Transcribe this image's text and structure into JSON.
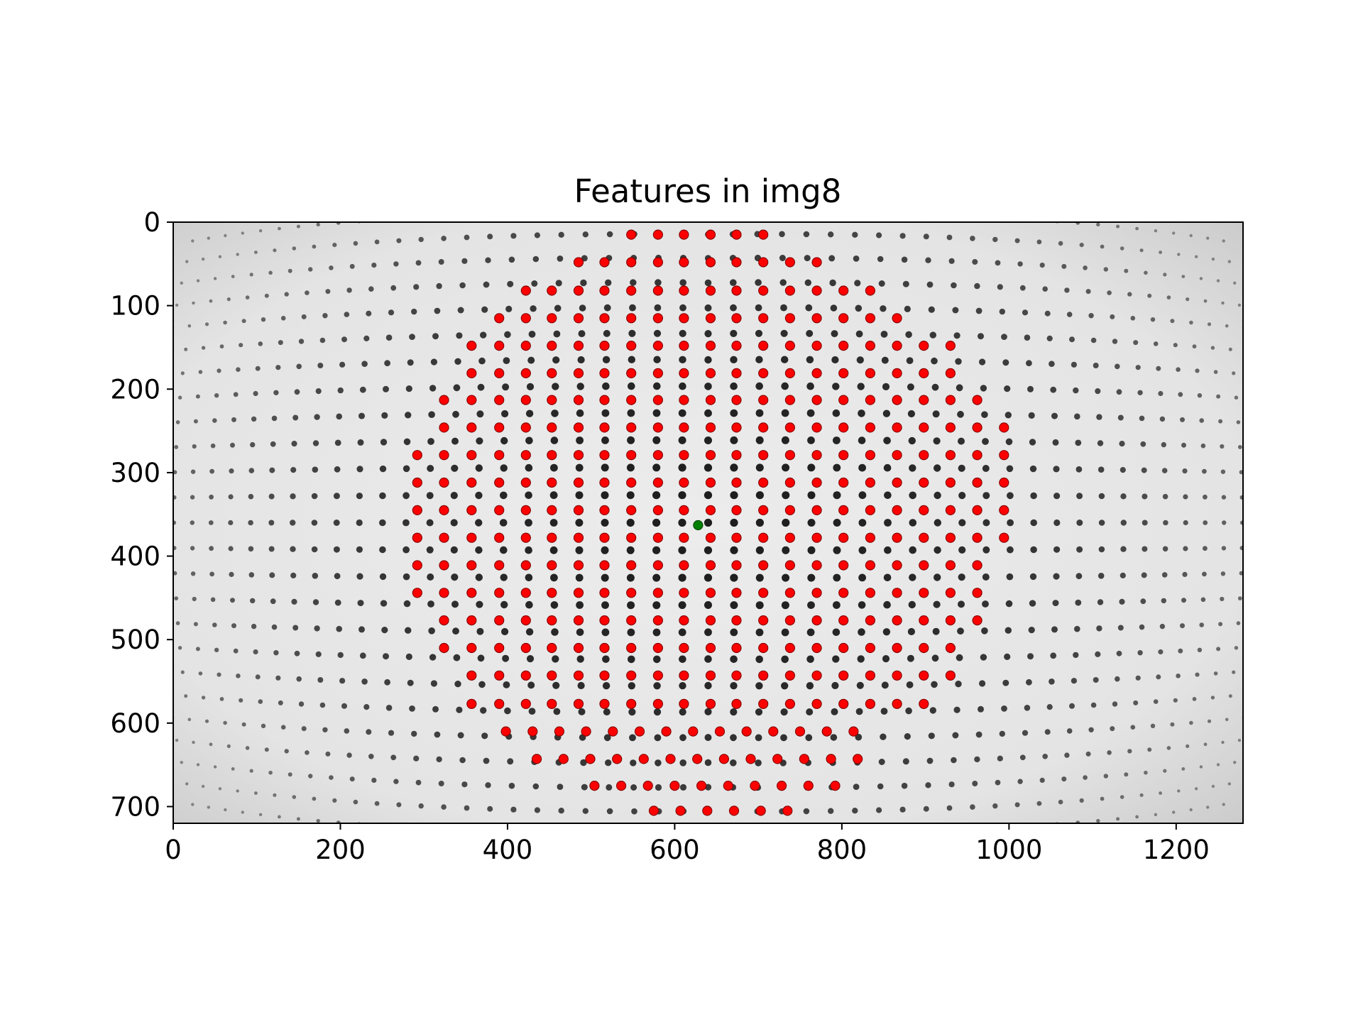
{
  "chart_data": {
    "type": "scatter",
    "title": "Features in img8",
    "xlabel": "",
    "ylabel": "",
    "xlim": [
      0,
      1280
    ],
    "ylim": [
      720,
      0
    ],
    "y_axis_inverted": true,
    "grid": false,
    "legend": "none",
    "x_ticks": [
      "0",
      "200",
      "400",
      "600",
      "800",
      "1000",
      "1200"
    ],
    "y_ticks": [
      "0",
      "100",
      "200",
      "300",
      "400",
      "500",
      "600",
      "700"
    ],
    "background": "grayscale fisheye calibration image of a dot grid",
    "feature_color": "#ff0000",
    "center_color": "#008000",
    "center_point": [
      628,
      363
    ],
    "feature_grid": {
      "rows": [
        {
          "y": 15,
          "x": [
            548,
            580,
            611,
            643,
            674,
            706
          ]
        },
        {
          "y": 48,
          "x": [
            485,
            516,
            548,
            580,
            611,
            643,
            674,
            706,
            738,
            770
          ]
        },
        {
          "y": 82,
          "x": [
            422,
            453,
            485,
            516,
            548,
            580,
            611,
            643,
            674,
            706,
            738,
            770,
            802,
            834
          ]
        },
        {
          "y": 115,
          "x": [
            390,
            422,
            453,
            485,
            516,
            548,
            580,
            611,
            643,
            674,
            706,
            738,
            770,
            802,
            834,
            866
          ]
        },
        {
          "y": 148,
          "x": [
            357,
            390,
            422,
            453,
            485,
            516,
            548,
            580,
            611,
            643,
            674,
            706,
            738,
            770,
            802,
            834,
            866,
            898,
            930
          ]
        },
        {
          "y": 181,
          "x": [
            357,
            390,
            422,
            453,
            485,
            516,
            548,
            580,
            611,
            643,
            674,
            706,
            738,
            770,
            802,
            834,
            866,
            898,
            930
          ]
        },
        {
          "y": 213,
          "x": [
            324,
            357,
            390,
            422,
            453,
            485,
            516,
            548,
            580,
            611,
            643,
            674,
            706,
            738,
            770,
            802,
            834,
            866,
            898,
            930,
            962
          ]
        },
        {
          "y": 246,
          "x": [
            324,
            357,
            390,
            422,
            453,
            485,
            516,
            548,
            580,
            611,
            643,
            674,
            706,
            738,
            770,
            802,
            834,
            866,
            898,
            930,
            962,
            994
          ]
        },
        {
          "y": 279,
          "x": [
            292,
            324,
            357,
            390,
            422,
            453,
            485,
            516,
            548,
            580,
            611,
            643,
            674,
            706,
            738,
            770,
            802,
            834,
            866,
            898,
            930,
            962,
            994
          ]
        },
        {
          "y": 312,
          "x": [
            292,
            324,
            357,
            390,
            422,
            453,
            485,
            516,
            548,
            580,
            611,
            643,
            674,
            706,
            738,
            770,
            802,
            834,
            866,
            898,
            930,
            962,
            994
          ]
        },
        {
          "y": 345,
          "x": [
            292,
            324,
            357,
            390,
            422,
            453,
            485,
            516,
            548,
            580,
            611,
            643,
            674,
            706,
            738,
            770,
            802,
            834,
            866,
            898,
            930,
            962,
            994
          ]
        },
        {
          "y": 378,
          "x": [
            292,
            324,
            357,
            390,
            422,
            453,
            485,
            516,
            548,
            580,
            611,
            643,
            674,
            706,
            738,
            770,
            802,
            834,
            866,
            898,
            930,
            962,
            994
          ]
        },
        {
          "y": 411,
          "x": [
            292,
            324,
            357,
            390,
            422,
            453,
            485,
            516,
            548,
            580,
            611,
            643,
            674,
            706,
            738,
            770,
            802,
            834,
            866,
            898,
            930,
            962
          ]
        },
        {
          "y": 444,
          "x": [
            292,
            324,
            357,
            390,
            422,
            453,
            485,
            516,
            548,
            580,
            611,
            643,
            674,
            706,
            738,
            770,
            802,
            834,
            866,
            898,
            930,
            962
          ]
        },
        {
          "y": 477,
          "x": [
            324,
            357,
            390,
            422,
            453,
            485,
            516,
            548,
            580,
            611,
            643,
            674,
            706,
            738,
            770,
            802,
            834,
            866,
            898,
            930,
            962
          ]
        },
        {
          "y": 510,
          "x": [
            324,
            357,
            390,
            422,
            453,
            485,
            516,
            548,
            580,
            611,
            643,
            674,
            706,
            738,
            770,
            802,
            834,
            866,
            898,
            930
          ]
        },
        {
          "y": 543,
          "x": [
            357,
            390,
            422,
            453,
            485,
            516,
            548,
            580,
            611,
            643,
            674,
            706,
            738,
            770,
            802,
            834,
            866,
            898,
            930
          ]
        },
        {
          "y": 577,
          "x": [
            357,
            390,
            422,
            453,
            485,
            516,
            548,
            580,
            611,
            643,
            674,
            706,
            738,
            770,
            802,
            834,
            866,
            898
          ]
        },
        {
          "y": 610,
          "x": [
            398,
            430,
            462,
            494,
            526,
            558,
            590,
            622,
            654,
            686,
            718,
            750,
            782,
            814
          ]
        },
        {
          "y": 643,
          "x": [
            435,
            467,
            499,
            531,
            563,
            595,
            627,
            659,
            691,
            723,
            755,
            787,
            819
          ]
        },
        {
          "y": 675,
          "x": [
            504,
            536,
            568,
            600,
            632,
            664,
            696,
            728,
            760,
            792
          ]
        },
        {
          "y": 705,
          "x": [
            575,
            607,
            639,
            671,
            703,
            735
          ]
        }
      ]
    }
  }
}
